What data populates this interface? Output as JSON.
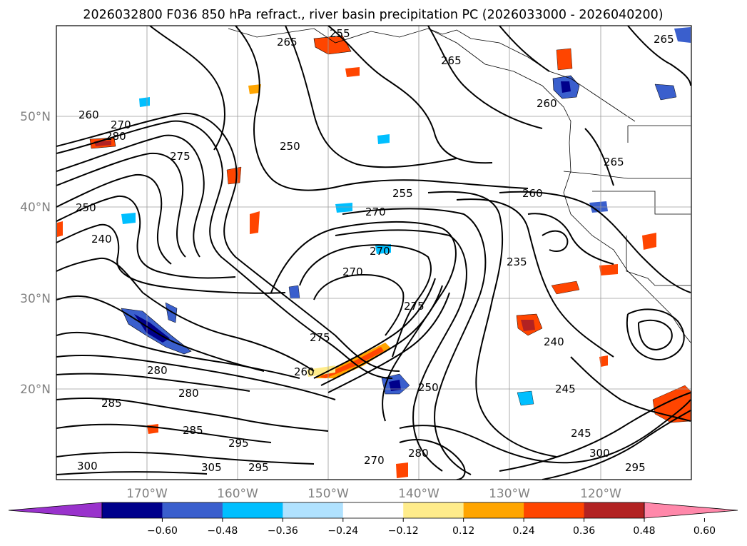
{
  "title": "2026032800 F036 850 hPa refract., river basin precipitation PC (2026033000 - 2026040200)",
  "lat_labels": [
    "50°N",
    "40°N",
    "30°N",
    "20°N"
  ],
  "lon_labels": [
    "170°W",
    "160°W",
    "150°W",
    "140°W",
    "130°W",
    "120°W"
  ],
  "colorbar": {
    "colors": [
      "#9932cc",
      "#00008b",
      "#3a5fcd",
      "#00bfff",
      "#b0e2ff",
      "#ffffff",
      "#ffec8b",
      "#ffa500",
      "#ff4500",
      "#b22222",
      "#ff88aa"
    ],
    "tick_labels": [
      "−0.60",
      "−0.48",
      "−0.36",
      "−0.24",
      "−0.12",
      "0.12",
      "0.24",
      "0.36",
      "0.48",
      "0.60"
    ]
  },
  "contour_labels": [
    "255",
    "265",
    "265",
    "260",
    "270",
    "280",
    "275",
    "250",
    "250",
    "240",
    "255",
    "270",
    "270",
    "260",
    "265",
    "235",
    "240",
    "245",
    "245",
    "270",
    "275",
    "280",
    "260",
    "285",
    "280",
    "285",
    "295",
    "305",
    "300",
    "295",
    "300",
    "280",
    "270",
    "295",
    "250",
    "265",
    "260",
    "275"
  ]
}
